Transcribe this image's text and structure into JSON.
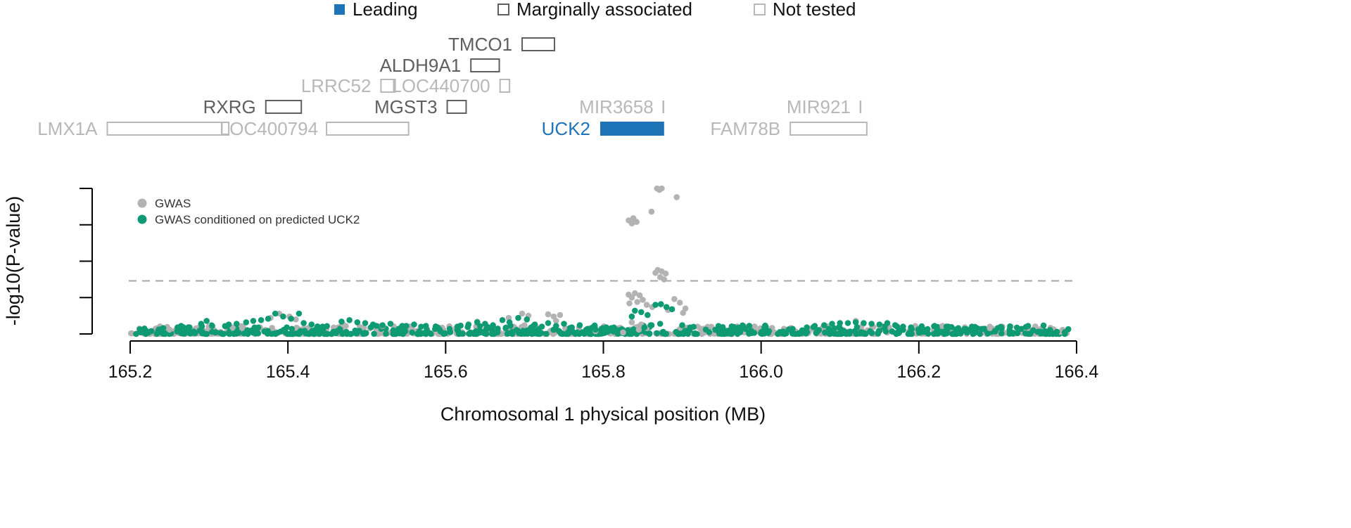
{
  "chart_data": {
    "type": "scatter",
    "title": "",
    "xlabel": "Chromosomal 1 physical position (MB)",
    "ylabel": "-log10(P-value)",
    "xlim": [
      165.2,
      166.4
    ],
    "ylim": [
      0,
      20
    ],
    "x_ticks": [
      "165.2",
      "165.4",
      "165.6",
      "165.8",
      "166.0",
      "166.2",
      "166.4"
    ],
    "y_ticks": [
      0,
      5,
      10,
      15,
      20
    ],
    "y_tick_labels_shown": false,
    "threshold": {
      "value": 7.3,
      "style": "dashed"
    },
    "colors": {
      "gwas": "#b3b3b3",
      "conditioned": "#0e9a73",
      "leading": "#1f73b7",
      "marginal": "#5f5f5f",
      "not_tested": "#b8b8b8",
      "threshold": "#a6a6a6",
      "axis": "#000000"
    },
    "legend_top": {
      "items": [
        {
          "label": "Leading",
          "style": "leading"
        },
        {
          "label": "Marginally associated",
          "style": "marginal"
        },
        {
          "label": "Not tested",
          "style": "not_tested"
        }
      ]
    },
    "legend_plot": {
      "position": "top-left",
      "items": [
        {
          "label": "GWAS",
          "series": "gwas"
        },
        {
          "label": "GWAS conditioned on predicted UCK2",
          "series": "conditioned"
        }
      ]
    },
    "genes": [
      {
        "name": "TMCO1",
        "start": 165.697,
        "end": 165.738,
        "row": 0,
        "status": "marginal",
        "label_side": "left"
      },
      {
        "name": "ALDH9A1",
        "start": 165.632,
        "end": 165.668,
        "row": 1,
        "status": "marginal",
        "label_side": "left"
      },
      {
        "name": "LRRC52",
        "start": 165.518,
        "end": 165.536,
        "row": 2,
        "status": "not_tested",
        "label_side": "left"
      },
      {
        "name": "LOC440700",
        "start": 165.669,
        "end": 165.681,
        "row": 2,
        "status": "not_tested",
        "label_side": "left"
      },
      {
        "name": "RXRG",
        "start": 165.372,
        "end": 165.417,
        "row": 3,
        "status": "marginal",
        "label_side": "left"
      },
      {
        "name": "MGST3",
        "start": 165.602,
        "end": 165.626,
        "row": 3,
        "status": "marginal",
        "label_side": "left"
      },
      {
        "name": "MIR3658",
        "start": 165.876,
        "end": 165.876,
        "row": 3,
        "status": "not_tested",
        "label_side": "left"
      },
      {
        "name": "MIR921",
        "start": 166.126,
        "end": 166.126,
        "row": 3,
        "status": "not_tested",
        "label_side": "left"
      },
      {
        "name": "LMX1A",
        "start": 165.171,
        "end": 165.325,
        "row": 4,
        "status": "not_tested",
        "label_side": "left"
      },
      {
        "name": "LOC400794",
        "start": 165.449,
        "end": 165.553,
        "row": 4,
        "status": "not_tested",
        "label_side": "left-overlap"
      },
      {
        "name": "UCK2",
        "start": 165.796,
        "end": 165.877,
        "row": 4,
        "status": "leading",
        "label_side": "left"
      },
      {
        "name": "FAM78B",
        "start": 166.037,
        "end": 166.134,
        "row": 4,
        "status": "not_tested",
        "label_side": "left"
      }
    ],
    "series": [
      {
        "name": "GWAS",
        "key": "gwas",
        "highlight_points": [
          [
            165.868,
            20.0
          ],
          [
            165.874,
            20.0
          ],
          [
            165.871,
            19.8
          ],
          [
            165.893,
            18.8
          ],
          [
            165.861,
            16.8
          ],
          [
            165.832,
            15.6
          ],
          [
            165.838,
            15.9
          ],
          [
            165.842,
            15.4
          ],
          [
            165.836,
            15.2
          ],
          [
            165.869,
            8.8
          ],
          [
            165.874,
            8.6
          ],
          [
            165.866,
            8.4
          ],
          [
            165.879,
            8.3
          ],
          [
            165.872,
            7.8
          ],
          [
            165.877,
            7.5
          ],
          [
            165.832,
            5.4
          ],
          [
            165.84,
            5.6
          ],
          [
            165.846,
            5.3
          ],
          [
            165.836,
            5.0
          ],
          [
            165.85,
            4.7
          ],
          [
            165.843,
            4.4
          ],
          [
            165.833,
            4.2
          ],
          [
            165.855,
            4.0
          ],
          [
            165.862,
            3.7
          ],
          [
            165.89,
            4.8
          ],
          [
            165.897,
            4.3
          ],
          [
            165.904,
            3.5
          ],
          [
            165.882,
            3.3
          ],
          [
            165.901,
            2.9
          ],
          [
            165.836,
            1.6
          ],
          [
            165.848,
            1.3
          ],
          [
            165.845,
            0.6
          ],
          [
            165.855,
            0.8
          ],
          [
            165.389,
            2.8
          ],
          [
            165.402,
            2.4
          ],
          [
            165.41,
            2.0
          ],
          [
            165.378,
            2.2
          ],
          [
            165.697,
            2.8
          ],
          [
            165.705,
            2.5
          ],
          [
            165.68,
            2.2
          ],
          [
            165.73,
            2.7
          ],
          [
            165.737,
            2.4
          ],
          [
            165.745,
            2.6
          ],
          [
            165.74,
            1.8
          ],
          [
            165.64,
            1.7
          ],
          [
            165.7,
            1.2
          ],
          [
            165.79,
            0.4
          ],
          [
            165.825,
            0.2
          ],
          [
            166.12,
            1.8
          ],
          [
            166.13,
            1.4
          ],
          [
            166.15,
            1.2
          ],
          [
            166.23,
            1.1
          ],
          [
            166.29,
            0.8
          ],
          [
            166.345,
            0.6
          ],
          [
            166.38,
            0.3
          ],
          [
            165.52,
            1.1
          ],
          [
            165.47,
            1.3
          ],
          [
            165.33,
            0.9
          ],
          [
            165.3,
            1.0
          ],
          [
            165.25,
            0.6
          ]
        ]
      },
      {
        "name": "GWAS conditioned on predicted UCK2",
        "key": "conditioned",
        "highlight_points": [
          [
            165.384,
            2.8
          ],
          [
            165.394,
            2.4
          ],
          [
            165.404,
            2.1
          ],
          [
            165.414,
            2.8
          ],
          [
            165.375,
            2.1
          ],
          [
            165.366,
            1.9
          ],
          [
            165.356,
            1.8
          ],
          [
            165.347,
            1.6
          ],
          [
            165.335,
            1.4
          ],
          [
            165.325,
            1.3
          ],
          [
            165.297,
            1.8
          ],
          [
            165.29,
            1.4
          ],
          [
            165.304,
            1.1
          ],
          [
            165.26,
            0.9
          ],
          [
            165.242,
            0.8
          ],
          [
            165.42,
            1.5
          ],
          [
            165.43,
            1.3
          ],
          [
            165.444,
            1.0
          ],
          [
            165.468,
            1.7
          ],
          [
            165.478,
            1.9
          ],
          [
            165.488,
            1.6
          ],
          [
            165.498,
            1.5
          ],
          [
            165.508,
            1.3
          ],
          [
            165.52,
            1.2
          ],
          [
            165.53,
            1.4
          ],
          [
            165.545,
            1.1
          ],
          [
            165.56,
            1.3
          ],
          [
            165.575,
            1.1
          ],
          [
            165.59,
            0.9
          ],
          [
            165.605,
            0.7
          ],
          [
            165.615,
            1.0
          ],
          [
            165.629,
            1.3
          ],
          [
            165.64,
            1.6
          ],
          [
            165.65,
            1.4
          ],
          [
            165.66,
            1.2
          ],
          [
            165.672,
            1.9
          ],
          [
            165.681,
            1.6
          ],
          [
            165.692,
            2.2
          ],
          [
            165.703,
            2.0
          ],
          [
            165.713,
            1.3
          ],
          [
            165.722,
            1.0
          ],
          [
            165.73,
            1.5
          ],
          [
            165.74,
            1.1
          ],
          [
            165.75,
            1.4
          ],
          [
            165.76,
            0.9
          ],
          [
            165.77,
            1.2
          ],
          [
            165.78,
            0.7
          ],
          [
            165.79,
            0.6
          ],
          [
            165.8,
            0.4
          ],
          [
            165.81,
            0.8
          ],
          [
            165.84,
            3.2
          ],
          [
            165.848,
            3.0
          ],
          [
            165.856,
            2.6
          ],
          [
            165.866,
            4.0
          ],
          [
            165.873,
            4.1
          ],
          [
            165.88,
            3.7
          ],
          [
            165.887,
            3.4
          ],
          [
            165.872,
            1.4
          ],
          [
            165.86,
            1.2
          ],
          [
            165.852,
            0.9
          ],
          [
            165.836,
            2.4
          ],
          [
            165.9,
            1.2
          ],
          [
            165.91,
            0.9
          ],
          [
            165.93,
            0.6
          ],
          [
            165.96,
            0.5
          ],
          [
            165.98,
            0.7
          ],
          [
            166.01,
            0.4
          ],
          [
            166.04,
            0.7
          ],
          [
            166.058,
            0.9
          ],
          [
            166.068,
            1.1
          ],
          [
            166.08,
            1.2
          ],
          [
            166.09,
            1.4
          ],
          [
            166.1,
            1.5
          ],
          [
            166.11,
            1.5
          ],
          [
            166.12,
            1.6
          ],
          [
            166.13,
            1.5
          ],
          [
            166.14,
            1.4
          ],
          [
            166.15,
            1.3
          ],
          [
            166.16,
            1.5
          ],
          [
            166.17,
            1.2
          ],
          [
            166.18,
            1.0
          ],
          [
            166.19,
            0.9
          ],
          [
            166.205,
            0.7
          ],
          [
            166.22,
            1.1
          ],
          [
            166.235,
            1.0
          ],
          [
            166.25,
            0.8
          ],
          [
            166.265,
            0.6
          ],
          [
            166.28,
            0.7
          ],
          [
            166.3,
            0.8
          ],
          [
            166.315,
            0.6
          ],
          [
            166.33,
            0.7
          ],
          [
            166.345,
            0.5
          ],
          [
            166.36,
            0.4
          ],
          [
            166.375,
            0.3
          ],
          [
            166.385,
            0.2
          ]
        ]
      }
    ]
  }
}
